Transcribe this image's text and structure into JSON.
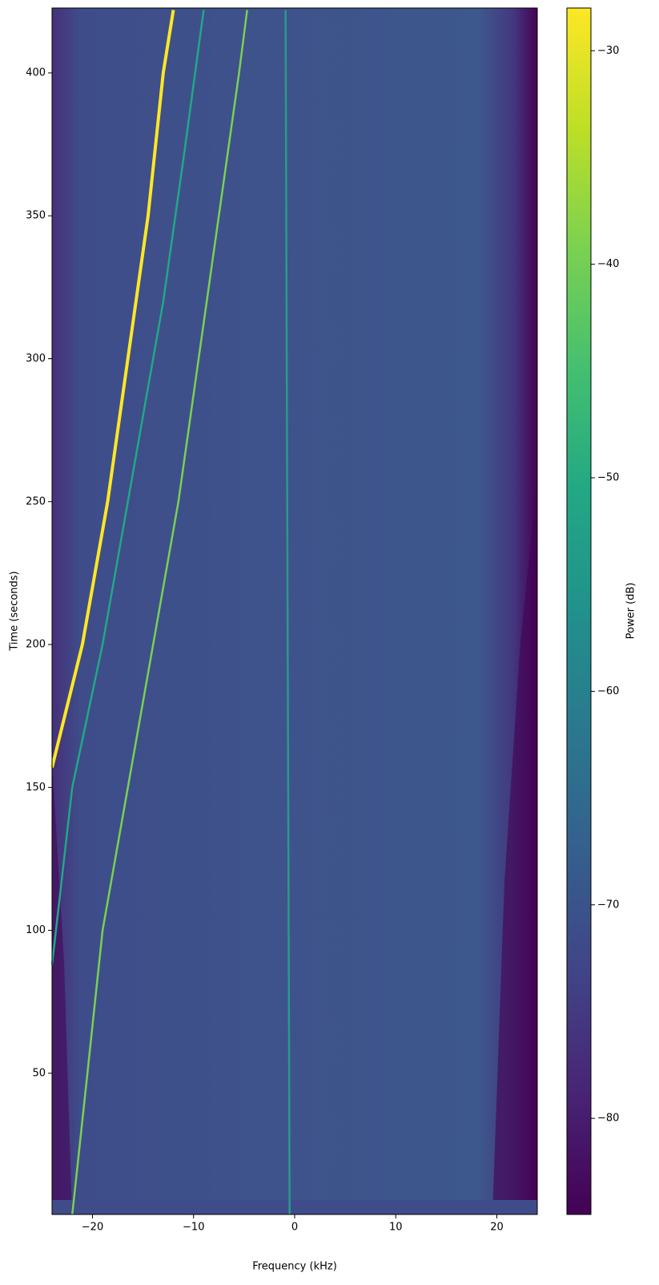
{
  "chart_data": {
    "type": "spectrogram",
    "xlabel": "Frequency (kHz)",
    "ylabel": "Time (seconds)",
    "colorbar_label": "Power (dB)",
    "xlim": [
      -24,
      24
    ],
    "ylim": [
      0.6,
      422.7
    ],
    "xticks": [
      {
        "value": -20,
        "label": "−20"
      },
      {
        "value": -10,
        "label": "−10"
      },
      0,
      10,
      20
    ],
    "yticks": [
      50,
      100,
      150,
      200,
      250,
      300,
      350,
      400
    ],
    "clim": [
      -84.5,
      -28.0
    ],
    "cticks": [
      {
        "value": -80,
        "label": "−80"
      },
      {
        "value": -70,
        "label": "−70"
      },
      {
        "value": -60,
        "label": "−60"
      },
      {
        "value": -50,
        "label": "−50"
      },
      {
        "value": -40,
        "label": "−40"
      },
      {
        "value": -30,
        "label": "−30"
      }
    ],
    "colormap": "viridis",
    "series": [
      {
        "color": "#fde725",
        "x": [
          -24,
          -21,
          -18.5,
          -16.5,
          -14.5,
          -13,
          -12
        ],
        "y": [
          157,
          200,
          250,
          300,
          350,
          400,
          422
        ]
      },
      {
        "color": "#7ad151",
        "x": [
          -22,
          -20.5,
          -19,
          -16.5,
          -14,
          -11.5,
          -9.5,
          -7.5,
          -5.5,
          -4.7
        ],
        "y": [
          0.6,
          50,
          100,
          150,
          200,
          250,
          300,
          350,
          400,
          422
        ]
      },
      {
        "color": "#22a884",
        "x": [
          -24,
          -22,
          -19,
          -16,
          -13,
          -11,
          -9
        ],
        "y": [
          88,
          150,
          200,
          260,
          320,
          370,
          422
        ]
      },
      {
        "color": "#2a9a8a",
        "x": [
          -0.5,
          -0.9
        ],
        "y": [
          0.6,
          422
        ]
      }
    ]
  }
}
